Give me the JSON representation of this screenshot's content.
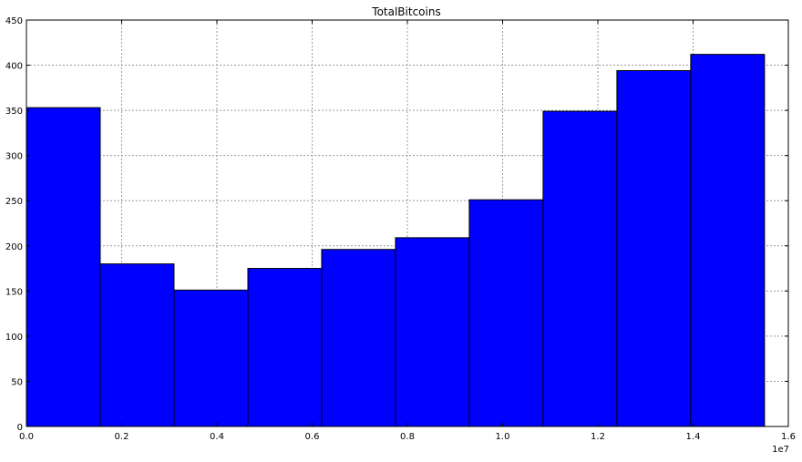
{
  "chart_data": {
    "type": "bar",
    "title": "TotalBitcoins",
    "xlabel": "",
    "ylabel": "",
    "x_offset_label": "1e7",
    "xlim": [
      0,
      1.6
    ],
    "ylim": [
      0,
      450
    ],
    "grid": true,
    "bar_color": "#0000ff",
    "bin_edges": [
      0,
      0.155,
      0.31,
      0.465,
      0.62,
      0.775,
      0.93,
      1.085,
      1.24,
      1.395,
      1.55
    ],
    "values": [
      353,
      180,
      151,
      175,
      196,
      209,
      251,
      349,
      394,
      412
    ],
    "x_ticks": [
      {
        "value": 0.0,
        "label": "0.0"
      },
      {
        "value": 0.2,
        "label": "0.2"
      },
      {
        "value": 0.4,
        "label": "0.4"
      },
      {
        "value": 0.6,
        "label": "0.6"
      },
      {
        "value": 0.8,
        "label": "0.8"
      },
      {
        "value": 1.0,
        "label": "1.0"
      },
      {
        "value": 1.2,
        "label": "1.2"
      },
      {
        "value": 1.4,
        "label": "1.4"
      },
      {
        "value": 1.6,
        "label": "1.6"
      }
    ],
    "y_ticks": [
      {
        "value": 0,
        "label": "0"
      },
      {
        "value": 50,
        "label": "50"
      },
      {
        "value": 100,
        "label": "100"
      },
      {
        "value": 150,
        "label": "150"
      },
      {
        "value": 200,
        "label": "200"
      },
      {
        "value": 250,
        "label": "250"
      },
      {
        "value": 300,
        "label": "300"
      },
      {
        "value": 350,
        "label": "350"
      },
      {
        "value": 400,
        "label": "400"
      },
      {
        "value": 450,
        "label": "450"
      }
    ]
  }
}
